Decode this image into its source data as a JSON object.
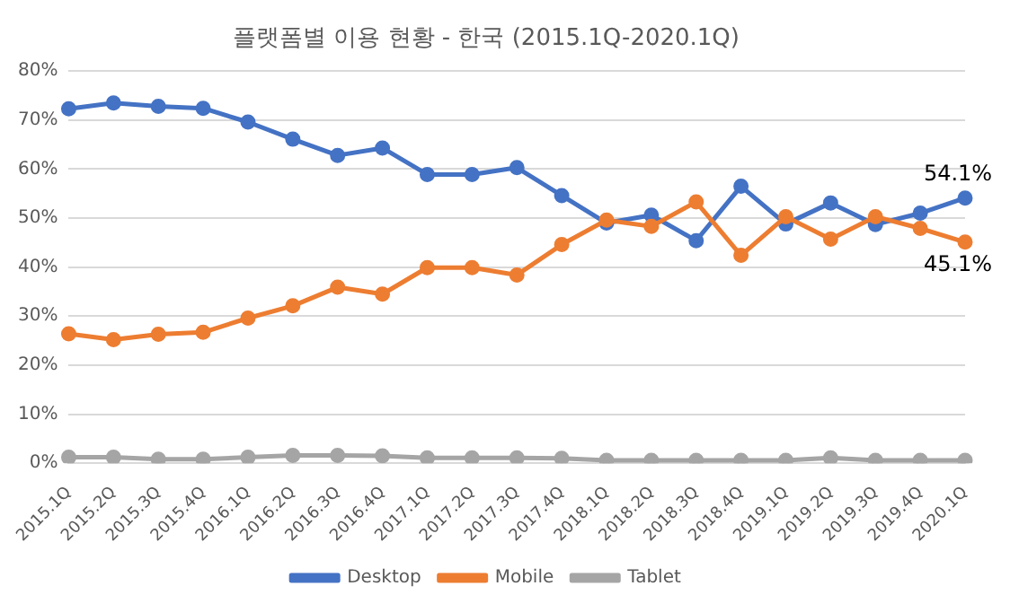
{
  "chart_data": {
    "type": "line",
    "title": "플랫폼별 이용 현황 - 한국 (2015.1Q-2020.1Q)",
    "categories": [
      "2015.1Q",
      "2015.2Q",
      "2015.3Q",
      "2015.4Q",
      "2016.1Q",
      "2016.2Q",
      "2016.3Q",
      "2016.4Q",
      "2017.1Q",
      "2017.2Q",
      "2017.3Q",
      "2017.4Q",
      "2018.1Q",
      "2018.2Q",
      "2018.3Q",
      "2018.4Q",
      "2019.1Q",
      "2019.2Q",
      "2019.3Q",
      "2019.4Q",
      "2020.1Q"
    ],
    "series": [
      {
        "name": "Desktop",
        "color": "#4472c4",
        "values": [
          72.3,
          73.5,
          72.8,
          72.4,
          69.6,
          66.1,
          62.8,
          64.3,
          58.9,
          58.9,
          60.3,
          54.6,
          49.0,
          50.6,
          45.4,
          56.5,
          48.8,
          53.1,
          48.7,
          51.0,
          54.1
        ],
        "value_labels": [
          null,
          null,
          null,
          null,
          null,
          null,
          null,
          null,
          null,
          null,
          null,
          null,
          null,
          null,
          null,
          null,
          null,
          null,
          null,
          null,
          "54.1%"
        ]
      },
      {
        "name": "Mobile",
        "color": "#ed7d31",
        "values": [
          26.4,
          25.2,
          26.3,
          26.7,
          29.6,
          32.1,
          35.9,
          34.5,
          39.9,
          39.9,
          38.4,
          44.6,
          49.6,
          48.3,
          53.3,
          42.4,
          50.3,
          45.7,
          50.3,
          47.9,
          45.1
        ],
        "value_labels": [
          null,
          null,
          null,
          null,
          null,
          null,
          null,
          null,
          null,
          null,
          null,
          null,
          null,
          null,
          null,
          null,
          null,
          null,
          null,
          null,
          "45.1%"
        ]
      },
      {
        "name": "Tablet",
        "color": "#a5a5a5",
        "values": [
          1.2,
          1.2,
          0.8,
          0.8,
          1.2,
          1.6,
          1.6,
          1.5,
          1.1,
          1.1,
          1.1,
          1.0,
          0.6,
          0.6,
          0.6,
          0.6,
          0.6,
          1.1,
          0.6,
          0.6,
          0.6
        ]
      }
    ],
    "ylim": [
      0,
      80
    ],
    "yticks": [
      {
        "value": 0,
        "label": "0%"
      },
      {
        "value": 10,
        "label": "10%"
      },
      {
        "value": 20,
        "label": "20%"
      },
      {
        "value": 30,
        "label": "30%"
      },
      {
        "value": 40,
        "label": "40%"
      },
      {
        "value": 50,
        "label": "50%"
      },
      {
        "value": 60,
        "label": "60%"
      },
      {
        "value": 70,
        "label": "70%"
      },
      {
        "value": 80,
        "label": "80%"
      }
    ],
    "grid": "y",
    "legend": "bottom",
    "marker": "circle",
    "line_style": "solid"
  }
}
